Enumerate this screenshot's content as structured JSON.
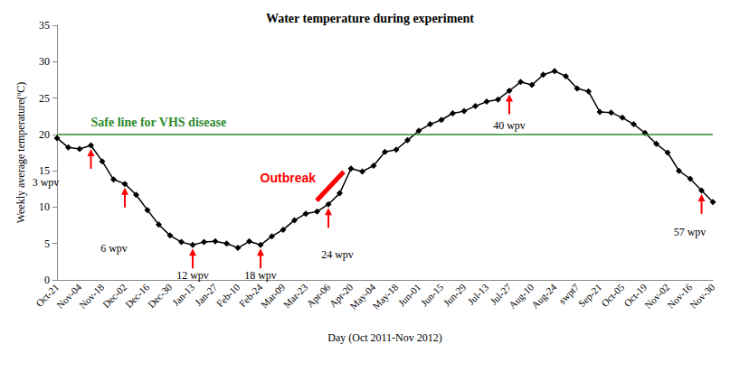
{
  "chart_data": {
    "type": "line",
    "title": "Water temperature during experiment",
    "x_label": "Day (Oct 2011-Nov 2012)",
    "y_label": "Weekly average temperature(ºC)",
    "categories": [
      "Oct-21",
      null,
      "Nov-04",
      null,
      "Nov-18",
      null,
      "Dec-02",
      null,
      "Dec-16",
      null,
      "Dec-30",
      null,
      "Jan-13",
      null,
      "Jan-27",
      null,
      "Feb-10",
      null,
      "Feb-24",
      null,
      "Mar-09",
      null,
      "Mar-23",
      null,
      "Apr-06",
      null,
      "Apr-20",
      null,
      "May-04",
      null,
      "May-18",
      null,
      "Jun-01",
      null,
      "Jun-15",
      null,
      "Jun-29",
      null,
      "Jul-13",
      null,
      "Jul-27",
      null,
      "Aug-10",
      null,
      "Aug-24",
      null,
      "swpt7",
      null,
      "Sep-21",
      null,
      "Oct-05",
      null,
      "Oct-19",
      null,
      "Nov-02",
      null,
      "Nov-16",
      null,
      "Nov-30"
    ],
    "values": [
      19.5,
      18.2,
      18.0,
      18.5,
      16.3,
      13.8,
      13.2,
      11.7,
      9.6,
      7.6,
      6.1,
      5.2,
      4.8,
      5.2,
      5.3,
      5.0,
      4.4,
      5.3,
      4.8,
      6.0,
      6.9,
      8.2,
      9.1,
      9.4,
      10.4,
      11.9,
      15.3,
      14.9,
      15.7,
      17.6,
      17.9,
      19.2,
      20.5,
      21.4,
      22.0,
      22.9,
      23.2,
      23.9,
      24.5,
      24.8,
      26.0,
      27.2,
      26.8,
      28.2,
      28.7,
      28.0,
      26.3,
      25.9,
      23.1,
      23.0,
      22.3,
      21.4,
      20.2,
      18.7,
      17.5,
      15.0,
      13.9,
      12.3,
      10.7
    ],
    "color": "#000000",
    "marker": "diamond",
    "ylim": [
      0,
      35
    ],
    "yticks": [
      0,
      5,
      10,
      15,
      20,
      25,
      30,
      35
    ],
    "grid": false,
    "safe_line": {
      "value": 20,
      "label": "Safe line for VHS disease",
      "color": "#2e8b2e"
    },
    "annotation_color": "#ff0000",
    "annotations": [
      {
        "text": "3 wpv",
        "index": 3
      },
      {
        "text": "6 wpv",
        "index": 6
      },
      {
        "text": "12 wpv",
        "index": 12
      },
      {
        "text": "18 wpv",
        "index": 18
      },
      {
        "text": "24 wpv",
        "index": 24
      },
      {
        "text": "40 wpv",
        "index": 40
      },
      {
        "text": "57 wpv",
        "index": 57
      }
    ],
    "outbreak": {
      "text": "Outbreak",
      "index": 24
    }
  }
}
